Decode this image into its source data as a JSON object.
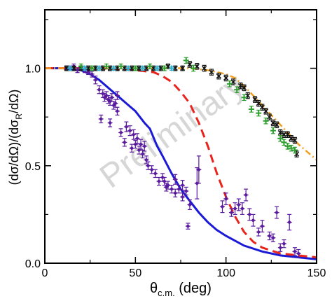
{
  "chart_data": {
    "type": "scatter",
    "xlabel_main": "θ",
    "xlabel_sub": "c.m.",
    "xlabel_unit": " (deg)",
    "ylabel_a": "(dσ/dΩ)/(dσ",
    "ylabel_sub": "R",
    "ylabel_b": "/dΩ)",
    "watermark": "Preliminary",
    "xlim": [
      0,
      150
    ],
    "ylim": [
      0,
      1.3
    ],
    "xticks": [
      0,
      50,
      100,
      150
    ],
    "yticks": [
      0.0,
      0.5,
      1.0
    ],
    "xtick_labels": [
      "0",
      "50",
      "100",
      "150"
    ],
    "ytick_labels": [
      "0.0",
      "0.5",
      "1.0"
    ],
    "grid": false,
    "colors": {
      "purple": "#5a1a9e",
      "blue": "#1a1ad6",
      "red": "#e8241c",
      "orange": "#f0a020",
      "green": "#2e9e2e",
      "cyan": "#30b0d0",
      "black": "#111111"
    },
    "series": [
      {
        "marker": "diamond",
        "color": "#5a1a9e",
        "points": [
          [
            12,
            1.0,
            0.012
          ],
          [
            14,
            1.0,
            0.012
          ],
          [
            16,
            1.01,
            0.012
          ],
          [
            18,
            0.99,
            0.012
          ],
          [
            20,
            1.0,
            0.012
          ],
          [
            22,
            0.99,
            0.012
          ],
          [
            24,
            0.98,
            0.012
          ],
          [
            26,
            0.97,
            0.015
          ],
          [
            28,
            0.94,
            0.02
          ],
          [
            30,
            0.89,
            0.02
          ],
          [
            32,
            0.87,
            0.02
          ],
          [
            33,
            0.85,
            0.02
          ],
          [
            34,
            0.86,
            0.02
          ],
          [
            35,
            0.84,
            0.02
          ],
          [
            36,
            0.83,
            0.02
          ],
          [
            37,
            0.85,
            0.02
          ],
          [
            38,
            0.81,
            0.02
          ],
          [
            39,
            0.82,
            0.02
          ],
          [
            40,
            0.78,
            0.02
          ],
          [
            40,
            0.86,
            0.02
          ],
          [
            31,
            0.74,
            0.02
          ],
          [
            36,
            0.72,
            0.02
          ],
          [
            45,
            0.7,
            0.025
          ],
          [
            47,
            0.68,
            0.025
          ],
          [
            49,
            0.66,
            0.025
          ],
          [
            51,
            0.64,
            0.025
          ],
          [
            53,
            0.61,
            0.025
          ],
          [
            55,
            0.6,
            0.025
          ],
          [
            42,
            0.67,
            0.02
          ],
          [
            44,
            0.62,
            0.02
          ],
          [
            48,
            0.59,
            0.02
          ],
          [
            50,
            0.61,
            0.02
          ],
          [
            52,
            0.58,
            0.02
          ],
          [
            54,
            0.56,
            0.02
          ],
          [
            56,
            0.53,
            0.02
          ],
          [
            57,
            0.5,
            0.02
          ],
          [
            59,
            0.48,
            0.02
          ],
          [
            61,
            0.46,
            0.02
          ],
          [
            63,
            0.42,
            0.02
          ],
          [
            65,
            0.44,
            0.02
          ],
          [
            66,
            0.42,
            0.02
          ],
          [
            67,
            0.39,
            0.02
          ],
          [
            68,
            0.4,
            0.02
          ],
          [
            70,
            0.38,
            0.02
          ],
          [
            72,
            0.43,
            0.025
          ],
          [
            74,
            0.38,
            0.02
          ],
          [
            76,
            0.4,
            0.025
          ],
          [
            78,
            0.37,
            0.02
          ],
          [
            80,
            0.3,
            0.025
          ],
          [
            79,
            0.19,
            0.015
          ],
          [
            84,
            0.41,
            0.08
          ],
          [
            85,
            0.48,
            0.07
          ],
          [
            72,
            0.36,
            0.02
          ],
          [
            76,
            0.34,
            0.02
          ],
          [
            98,
            0.29,
            0.03
          ],
          [
            100,
            0.33,
            0.03
          ],
          [
            103,
            0.26,
            0.02
          ],
          [
            105,
            0.28,
            0.03
          ],
          [
            107,
            0.3,
            0.03
          ],
          [
            109,
            0.28,
            0.03
          ],
          [
            111,
            0.35,
            0.03
          ],
          [
            113,
            0.25,
            0.03
          ],
          [
            115,
            0.22,
            0.03
          ],
          [
            118,
            0.16,
            0.02
          ],
          [
            120,
            0.19,
            0.03
          ],
          [
            124,
            0.14,
            0.02
          ],
          [
            126,
            0.13,
            0.02
          ],
          [
            128,
            0.26,
            0.03
          ],
          [
            132,
            0.1,
            0.02
          ],
          [
            135,
            0.21,
            0.04
          ],
          [
            138,
            0.06,
            0.02
          ],
          [
            140,
            0.05,
            0.02
          ],
          [
            130,
            0.08,
            0.02
          ]
        ]
      },
      {
        "marker": "cross",
        "color": "#111111",
        "points": [
          [
            12,
            1.0,
            0.012
          ],
          [
            16,
            1.0,
            0.012
          ],
          [
            20,
            1.0,
            0.012
          ],
          [
            24,
            1.0,
            0.012
          ],
          [
            28,
            1.0,
            0.012
          ],
          [
            32,
            1.0,
            0.012
          ],
          [
            36,
            1.0,
            0.012
          ],
          [
            40,
            1.0,
            0.012
          ],
          [
            44,
            1.0,
            0.012
          ],
          [
            48,
            1.0,
            0.012
          ],
          [
            52,
            1.0,
            0.012
          ],
          [
            56,
            1.0,
            0.012
          ],
          [
            60,
            1.0,
            0.012
          ],
          [
            64,
            1.0,
            0.012
          ],
          [
            68,
            1.01,
            0.012
          ],
          [
            72,
            1.0,
            0.012
          ],
          [
            76,
            1.0,
            0.012
          ],
          [
            80,
            1.02,
            0.015
          ],
          [
            84,
            1.01,
            0.015
          ],
          [
            88,
            1.0,
            0.015
          ],
          [
            92,
            0.98,
            0.015
          ],
          [
            96,
            0.96,
            0.015
          ],
          [
            100,
            0.95,
            0.015
          ],
          [
            104,
            0.93,
            0.015
          ],
          [
            108,
            0.91,
            0.015
          ],
          [
            110,
            0.9,
            0.015
          ],
          [
            112,
            0.86,
            0.015
          ],
          [
            116,
            0.84,
            0.015
          ],
          [
            118,
            0.82,
            0.015
          ],
          [
            120,
            0.8,
            0.015
          ],
          [
            122,
            0.78,
            0.015
          ],
          [
            124,
            0.75,
            0.015
          ],
          [
            126,
            0.72,
            0.015
          ],
          [
            128,
            0.71,
            0.015
          ],
          [
            130,
            0.67,
            0.015
          ],
          [
            132,
            0.66,
            0.015
          ],
          [
            134,
            0.66,
            0.015
          ],
          [
            136,
            0.64,
            0.015
          ],
          [
            138,
            0.63,
            0.015
          ],
          [
            139,
            0.56,
            0.015
          ]
        ]
      },
      {
        "marker": "plus",
        "color": "#2e9e2e",
        "points": [
          [
            20,
            1.01,
            0.012
          ],
          [
            26,
            1.0,
            0.012
          ],
          [
            34,
            1.01,
            0.012
          ],
          [
            42,
            1.01,
            0.012
          ],
          [
            50,
            1.0,
            0.012
          ],
          [
            58,
            1.01,
            0.012
          ],
          [
            66,
            1.0,
            0.012
          ],
          [
            78,
            1.04,
            0.015
          ],
          [
            82,
            1.0,
            0.015
          ],
          [
            102,
            0.92,
            0.015
          ],
          [
            106,
            0.89,
            0.015
          ],
          [
            110,
            0.85,
            0.015
          ],
          [
            114,
            0.79,
            0.015
          ],
          [
            118,
            0.77,
            0.015
          ],
          [
            122,
            0.73,
            0.015
          ],
          [
            126,
            0.68,
            0.015
          ],
          [
            130,
            0.64,
            0.015
          ],
          [
            132,
            0.62,
            0.015
          ],
          [
            134,
            0.6,
            0.015
          ],
          [
            136,
            0.59,
            0.015
          ],
          [
            138,
            0.58,
            0.015
          ]
        ]
      },
      {
        "marker": "plus",
        "color": "#30b0d0",
        "points": [
          [
            14,
            1.0,
            0.01
          ],
          [
            22,
            1.0,
            0.01
          ],
          [
            30,
            1.0,
            0.01
          ],
          [
            38,
            1.0,
            0.01
          ],
          [
            46,
            1.0,
            0.01
          ],
          [
            54,
            1.0,
            0.01
          ],
          [
            62,
            1.0,
            0.01
          ],
          [
            70,
            1.0,
            0.01
          ]
        ]
      }
    ],
    "lines": [
      {
        "style": "solid",
        "color": "#1a1ad6",
        "points": [
          [
            0,
            1.0
          ],
          [
            10,
            1.0
          ],
          [
            20,
            0.99
          ],
          [
            25,
            0.97
          ],
          [
            30,
            0.94
          ],
          [
            35,
            0.9
          ],
          [
            40,
            0.86
          ],
          [
            45,
            0.82
          ],
          [
            50,
            0.78
          ],
          [
            55,
            0.72
          ],
          [
            58,
            0.69
          ],
          [
            62,
            0.6
          ],
          [
            65,
            0.55
          ],
          [
            70,
            0.46
          ],
          [
            75,
            0.38
          ],
          [
            80,
            0.32
          ],
          [
            85,
            0.26
          ],
          [
            90,
            0.21
          ],
          [
            95,
            0.17
          ],
          [
            100,
            0.14
          ],
          [
            110,
            0.09
          ],
          [
            120,
            0.06
          ],
          [
            130,
            0.04
          ],
          [
            140,
            0.03
          ],
          [
            150,
            0.02
          ]
        ]
      },
      {
        "style": "dashed",
        "color": "#e8241c",
        "points": [
          [
            0,
            1.0
          ],
          [
            30,
            1.0
          ],
          [
            50,
            0.99
          ],
          [
            60,
            0.98
          ],
          [
            65,
            0.96
          ],
          [
            70,
            0.93
          ],
          [
            75,
            0.88
          ],
          [
            80,
            0.82
          ],
          [
            85,
            0.72
          ],
          [
            90,
            0.6
          ],
          [
            95,
            0.46
          ],
          [
            100,
            0.34
          ],
          [
            105,
            0.24
          ],
          [
            110,
            0.16
          ],
          [
            115,
            0.11
          ],
          [
            120,
            0.08
          ],
          [
            130,
            0.05
          ],
          [
            140,
            0.04
          ],
          [
            150,
            0.03
          ]
        ]
      },
      {
        "style": "dashdot",
        "color": "#f0a020",
        "points": [
          [
            0,
            1.0
          ],
          [
            40,
            1.0
          ],
          [
            60,
            1.0
          ],
          [
            80,
            1.0
          ],
          [
            90,
            0.99
          ],
          [
            100,
            0.97
          ],
          [
            105,
            0.95
          ],
          [
            110,
            0.91
          ],
          [
            115,
            0.86
          ],
          [
            120,
            0.81
          ],
          [
            125,
            0.76
          ],
          [
            130,
            0.71
          ],
          [
            135,
            0.66
          ],
          [
            140,
            0.61
          ],
          [
            145,
            0.57
          ],
          [
            150,
            0.53
          ]
        ]
      }
    ]
  }
}
